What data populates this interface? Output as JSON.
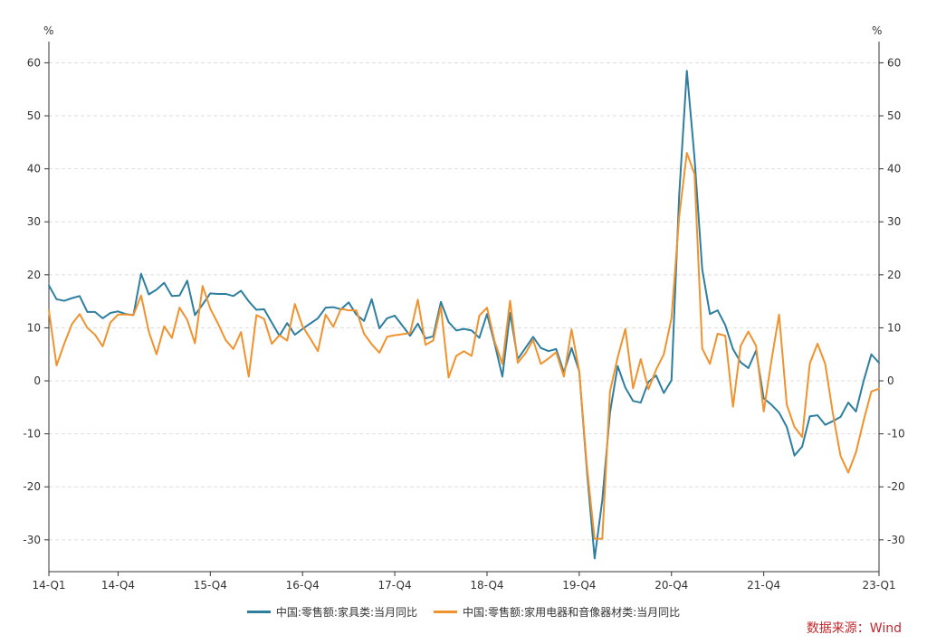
{
  "chart_data": {
    "type": "line",
    "y_unit_left": "%",
    "y_unit_right": "%",
    "ylim": [
      -36,
      64
    ],
    "yticks": [
      -30,
      -20,
      -10,
      0,
      10,
      20,
      30,
      40,
      50,
      60
    ],
    "x_tick_labels": [
      "14-Q1",
      "14-Q4",
      "15-Q4",
      "16-Q4",
      "17-Q4",
      "18-Q4",
      "19-Q4",
      "20-Q4",
      "21-Q4",
      "23-Q1"
    ],
    "x_tick_positions": [
      0,
      9,
      21,
      33,
      45,
      57,
      69,
      81,
      93,
      108
    ],
    "grid": true,
    "legend_position": "bottom",
    "series": [
      {
        "name": "中国:零售额:家具类:当月同比",
        "color": "#2e7ea0",
        "values": [
          18.0,
          15.4,
          15.1,
          15.6,
          16.0,
          13.0,
          13.0,
          11.8,
          12.8,
          13.1,
          12.6,
          12.4,
          20.2,
          16.3,
          17.2,
          18.5,
          16.0,
          16.1,
          18.9,
          12.4,
          14.4,
          16.5,
          16.4,
          16.4,
          16.0,
          17.0,
          15.0,
          13.4,
          13.5,
          11.0,
          8.5,
          10.9,
          8.7,
          9.8,
          10.8,
          11.8,
          13.8,
          13.9,
          13.5,
          14.8,
          12.5,
          11.3,
          15.4,
          9.9,
          11.8,
          12.3,
          10.4,
          8.5,
          10.8,
          8.0,
          8.4,
          14.9,
          11.1,
          9.5,
          9.8,
          9.5,
          8.1,
          12.6,
          7.0,
          0.8,
          12.8,
          4.1,
          6.2,
          8.3,
          6.2,
          5.6,
          6.0,
          1.6,
          6.2,
          1.8,
          -17.0,
          -33.5,
          -22.5,
          -6.0,
          2.8,
          -1.3,
          -3.8,
          -4.1,
          -0.2,
          1.0,
          -2.3,
          0.1,
          35.0,
          58.5,
          42.0,
          21.0,
          12.6,
          13.3,
          10.5,
          6.0,
          3.5,
          2.4,
          5.7,
          -3.3,
          -4.5,
          -6.0,
          -8.7,
          -14.1,
          -12.4,
          -6.7,
          -6.5,
          -8.3,
          -7.6,
          -6.8,
          -4.1,
          -5.8,
          0.0,
          5.0,
          3.4
        ]
      },
      {
        "name": "中国:零售额:家用电器和音像器材类:当月同比",
        "color": "#f0922d",
        "values": [
          13.3,
          2.9,
          7.0,
          10.7,
          12.6,
          10.0,
          8.7,
          6.5,
          11.0,
          12.5,
          12.5,
          12.4,
          16.1,
          9.3,
          5.0,
          10.3,
          8.1,
          13.8,
          11.5,
          7.1,
          17.9,
          13.6,
          10.8,
          7.7,
          6.0,
          9.2,
          0.8,
          12.4,
          11.7,
          7.0,
          8.6,
          7.6,
          14.5,
          10.3,
          8.0,
          5.6,
          12.5,
          10.2,
          13.6,
          13.3,
          13.3,
          8.9,
          6.9,
          5.3,
          8.3,
          8.6,
          8.8,
          9.0,
          15.3,
          6.8,
          7.6,
          14.0,
          0.6,
          4.7,
          5.6,
          4.7,
          12.3,
          13.8,
          7.4,
          3.2,
          15.1,
          3.4,
          5.2,
          7.7,
          3.2,
          4.2,
          5.4,
          0.8,
          9.7,
          1.8,
          -16.2,
          -29.8,
          -29.8,
          -2.0,
          4.4,
          9.8,
          -1.4,
          4.1,
          -1.6,
          2.1,
          5.0,
          11.8,
          31.0,
          43.0,
          39.0,
          6.1,
          3.2,
          8.9,
          8.5,
          -4.9,
          6.6,
          9.3,
          6.6,
          -5.8,
          3.8,
          12.5,
          -4.5,
          -8.7,
          -10.6,
          3.3,
          7.0,
          3.2,
          -6.2,
          -14.2,
          -17.3,
          -13.5,
          -7.5,
          -2.0,
          -1.5
        ]
      }
    ]
  },
  "source_note": "数据来源：Wind"
}
